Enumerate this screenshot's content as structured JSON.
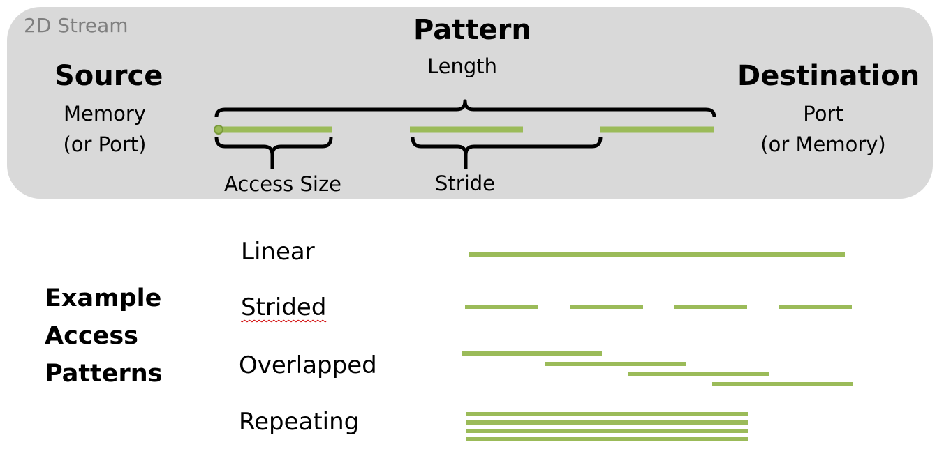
{
  "colors": {
    "panel": "#d9d9d9",
    "bar": "#9bbb59",
    "brace": "#000000",
    "tag_text": "#7f7f7f"
  },
  "panel": {
    "tag": "2D Stream",
    "pattern": {
      "title": "Pattern",
      "subtitle": "Length"
    },
    "source": {
      "title": "Source",
      "line1": "Memory",
      "line2": "(or Port)"
    },
    "destination": {
      "title": "Destination",
      "line1": "Port",
      "line2": "(or Memory)"
    },
    "access_size_label": "Access Size",
    "stride_label": "Stride"
  },
  "examples": {
    "heading": [
      "Example",
      "Access",
      "Patterns"
    ],
    "patterns": [
      {
        "name": "Linear"
      },
      {
        "name": "Strided"
      },
      {
        "name": "Overlapped"
      },
      {
        "name": "Repeating"
      }
    ]
  }
}
